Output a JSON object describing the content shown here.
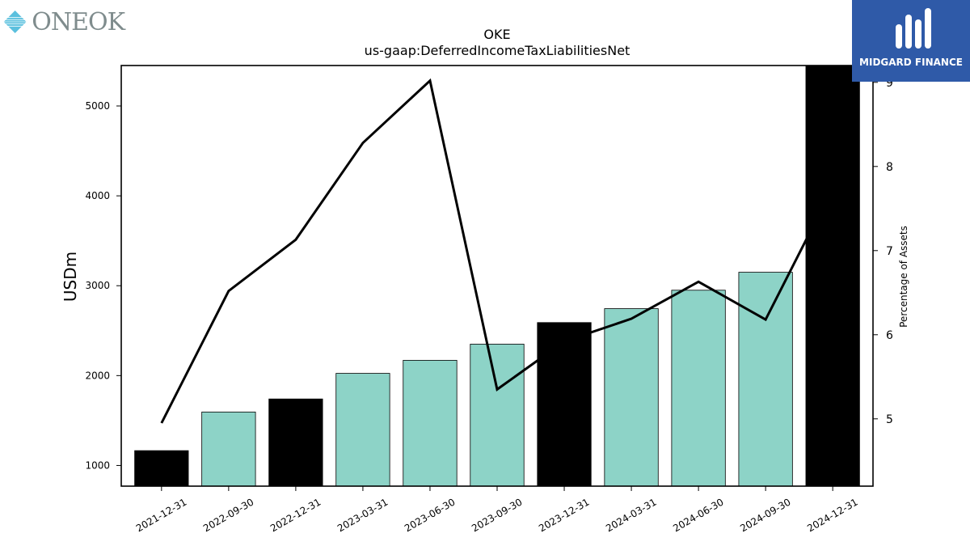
{
  "logos": {
    "left_text": "ONEOK",
    "right_text": "MIDGARD FINANCE"
  },
  "chart_data": {
    "type": "bar",
    "title": "OKE",
    "subtitle": "us-gaap:DeferredIncomeTaxLiabilitiesNet",
    "ylabel": "USDm",
    "y2label": "Percentage of Assets",
    "categories": [
      "2021-12-31",
      "2022-09-30",
      "2022-12-31",
      "2023-03-31",
      "2023-06-30",
      "2023-09-30",
      "2023-12-31",
      "2024-03-31",
      "2024-06-30",
      "2024-09-30",
      "2024-12-31"
    ],
    "values": [
      1165,
      1595,
      1740,
      2025,
      2170,
      2350,
      2590,
      2745,
      2950,
      3150,
      5450
    ],
    "bar_colors": [
      "#000000",
      "#8dd3c7",
      "#000000",
      "#8dd3c7",
      "#8dd3c7",
      "#8dd3c7",
      "#000000",
      "#8dd3c7",
      "#8dd3c7",
      "#8dd3c7",
      "#000000"
    ],
    "line_series": {
      "values": [
        4.95,
        6.52,
        7.13,
        8.28,
        9.02,
        5.35,
        5.92,
        6.19,
        6.63,
        6.18,
        7.75
      ]
    },
    "ylim": [
      770,
      5450
    ],
    "y_ticks": [
      1000,
      2000,
      3000,
      4000,
      5000
    ],
    "y2lim": [
      4.2,
      9.2
    ],
    "y2_ticks": [
      5,
      6,
      7,
      8,
      9
    ],
    "grid": false,
    "line_color": "#000000"
  }
}
